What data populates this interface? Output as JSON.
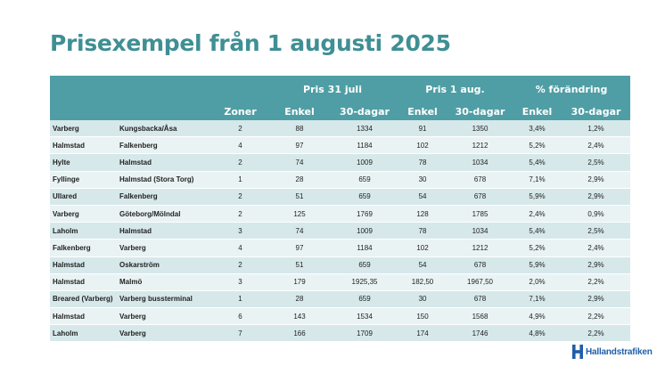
{
  "title": "Prisexempel från 1 augusti 2025",
  "header": {
    "group_jul": "Pris 31 juli",
    "group_aug": "Pris 1 aug.",
    "group_change": "% förändring",
    "zoner": "Zoner",
    "enkel": "Enkel",
    "trettio": "30-dagar"
  },
  "rows": [
    {
      "from": "Varberg",
      "to": "Kungsbacka/Åsa",
      "zoner": "2",
      "jul_enkel": "88",
      "jul_30": "1334",
      "aug_enkel": "91",
      "aug_30": "1350",
      "chg_enkel": "3,4%",
      "chg_30": "1,2%"
    },
    {
      "from": "Halmstad",
      "to": "Falkenberg",
      "zoner": "4",
      "jul_enkel": "97",
      "jul_30": "1184",
      "aug_enkel": "102",
      "aug_30": "1212",
      "chg_enkel": "5,2%",
      "chg_30": "2,4%"
    },
    {
      "from": "Hylte",
      "to": "Halmstad",
      "zoner": "2",
      "jul_enkel": "74",
      "jul_30": "1009",
      "aug_enkel": "78",
      "aug_30": "1034",
      "chg_enkel": "5,4%",
      "chg_30": "2,5%"
    },
    {
      "from": "Fyllinge",
      "to": "Halmstad (Stora Torg)",
      "zoner": "1",
      "jul_enkel": "28",
      "jul_30": "659",
      "aug_enkel": "30",
      "aug_30": "678",
      "chg_enkel": "7,1%",
      "chg_30": "2,9%"
    },
    {
      "from": "Ullared",
      "to": "Falkenberg",
      "zoner": "2",
      "jul_enkel": "51",
      "jul_30": "659",
      "aug_enkel": "54",
      "aug_30": "678",
      "chg_enkel": "5,9%",
      "chg_30": "2,9%"
    },
    {
      "from": "Varberg",
      "to": "Göteborg/Mölndal",
      "zoner": "2",
      "jul_enkel": "125",
      "jul_30": "1769",
      "aug_enkel": "128",
      "aug_30": "1785",
      "chg_enkel": "2,4%",
      "chg_30": "0,9%"
    },
    {
      "from": "Laholm",
      "to": "Halmstad",
      "zoner": "3",
      "jul_enkel": "74",
      "jul_30": "1009",
      "aug_enkel": "78",
      "aug_30": "1034",
      "chg_enkel": "5,4%",
      "chg_30": "2,5%"
    },
    {
      "from": "Falkenberg",
      "to": "Varberg",
      "zoner": "4",
      "jul_enkel": "97",
      "jul_30": "1184",
      "aug_enkel": "102",
      "aug_30": "1212",
      "chg_enkel": "5,2%",
      "chg_30": "2,4%"
    },
    {
      "from": "Halmstad",
      "to": "Oskarström",
      "zoner": "2",
      "jul_enkel": "51",
      "jul_30": "659",
      "aug_enkel": "54",
      "aug_30": "678",
      "chg_enkel": "5,9%",
      "chg_30": "2,9%"
    },
    {
      "from": "Halmstad",
      "to": "Malmö",
      "zoner": "3",
      "jul_enkel": "179",
      "jul_30": "1925,35",
      "aug_enkel": "182,50",
      "aug_30": "1967,50",
      "chg_enkel": "2,0%",
      "chg_30": "2,2%"
    },
    {
      "from": "Breared (Varberg)",
      "to": "Varberg bussterminal",
      "zoner": "1",
      "jul_enkel": "28",
      "jul_30": "659",
      "aug_enkel": "30",
      "aug_30": "678",
      "chg_enkel": "7,1%",
      "chg_30": "2,9%"
    },
    {
      "from": "Halmstad",
      "to": "Varberg",
      "zoner": "6",
      "jul_enkel": "143",
      "jul_30": "1534",
      "aug_enkel": "150",
      "aug_30": "1568",
      "chg_enkel": "4,9%",
      "chg_30": "2,2%"
    },
    {
      "from": "Laholm",
      "to": "Varberg",
      "zoner": "7",
      "jul_enkel": "166",
      "jul_30": "1709",
      "aug_enkel": "174",
      "aug_30": "1746",
      "chg_enkel": "4,8%",
      "chg_30": "2,2%"
    }
  ],
  "logo": {
    "text": "Hallandstrafiken",
    "icon": "hallandstrafiken-h-logo",
    "color": "#1f5fa8"
  },
  "colors": {
    "title": "#3f8f94",
    "header": "#4f9ea5",
    "row_odd": "#d6e8ea",
    "row_even": "#eaf3f4"
  }
}
